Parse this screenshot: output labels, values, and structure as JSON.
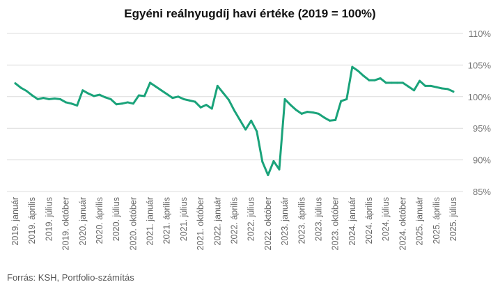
{
  "chart_data": {
    "type": "line",
    "title": "Egyéni reálnyugdíj havi értéke (2019 = 100%)",
    "source": "Forrás: KSH, Portfolio-számítás",
    "accent_color": "#1aa37a",
    "grid": true,
    "y_axis_side": "right",
    "ylim": [
      85,
      110
    ],
    "yticks": [
      {
        "value": 85,
        "label": "85%"
      },
      {
        "value": 90,
        "label": "90%"
      },
      {
        "value": 95,
        "label": "95%"
      },
      {
        "value": 100,
        "label": "100%"
      },
      {
        "value": 105,
        "label": "105%"
      },
      {
        "value": 110,
        "label": "110%"
      }
    ],
    "xticks": [
      {
        "index": 0,
        "label": "2019. január"
      },
      {
        "index": 3,
        "label": "2019. április"
      },
      {
        "index": 6,
        "label": "2019. július"
      },
      {
        "index": 9,
        "label": "2019. október"
      },
      {
        "index": 12,
        "label": "2020. január"
      },
      {
        "index": 15,
        "label": "2020. április"
      },
      {
        "index": 18,
        "label": "2020. július"
      },
      {
        "index": 21,
        "label": "2020. október"
      },
      {
        "index": 24,
        "label": "2021. január"
      },
      {
        "index": 27,
        "label": "2021. április"
      },
      {
        "index": 30,
        "label": "2021. július"
      },
      {
        "index": 33,
        "label": "2021. október"
      },
      {
        "index": 36,
        "label": "2022. január"
      },
      {
        "index": 39,
        "label": "2022. április"
      },
      {
        "index": 42,
        "label": "2022. július"
      },
      {
        "index": 45,
        "label": "2022. október"
      },
      {
        "index": 48,
        "label": "2023. január"
      },
      {
        "index": 51,
        "label": "2023. április"
      },
      {
        "index": 54,
        "label": "2023. július"
      },
      {
        "index": 57,
        "label": "2023. október"
      },
      {
        "index": 60,
        "label": "2024. január"
      },
      {
        "index": 63,
        "label": "2024. április"
      },
      {
        "index": 66,
        "label": "2024. július"
      },
      {
        "index": 69,
        "label": "2024. október"
      },
      {
        "index": 72,
        "label": "2025. január"
      },
      {
        "index": 75,
        "label": "2025. április"
      },
      {
        "index": 78,
        "label": "2025. július"
      }
    ],
    "series": [
      {
        "values": [
          102.1,
          101.4,
          100.9,
          100.2,
          99.6,
          99.8,
          99.6,
          99.7,
          99.6,
          99.1,
          98.9,
          98.6,
          101.0,
          100.5,
          100.1,
          100.3,
          99.9,
          99.6,
          98.8,
          98.9,
          99.1,
          98.9,
          100.2,
          100.1,
          102.2,
          101.6,
          101.0,
          100.4,
          99.8,
          100.0,
          99.6,
          99.4,
          99.2,
          98.3,
          98.7,
          98.1,
          101.7,
          100.6,
          99.5,
          97.8,
          96.3,
          94.8,
          96.2,
          94.5,
          89.7,
          87.6,
          89.8,
          88.5,
          99.6,
          98.7,
          97.9,
          97.3,
          97.6,
          97.5,
          97.3,
          96.7,
          96.2,
          96.3,
          99.3,
          99.6,
          104.7,
          104.1,
          103.3,
          102.6,
          102.6,
          102.9,
          102.2,
          102.2,
          102.2,
          102.2,
          101.6,
          101.0,
          102.5,
          101.7,
          101.7,
          101.5,
          101.3,
          101.2,
          100.8
        ]
      }
    ]
  }
}
